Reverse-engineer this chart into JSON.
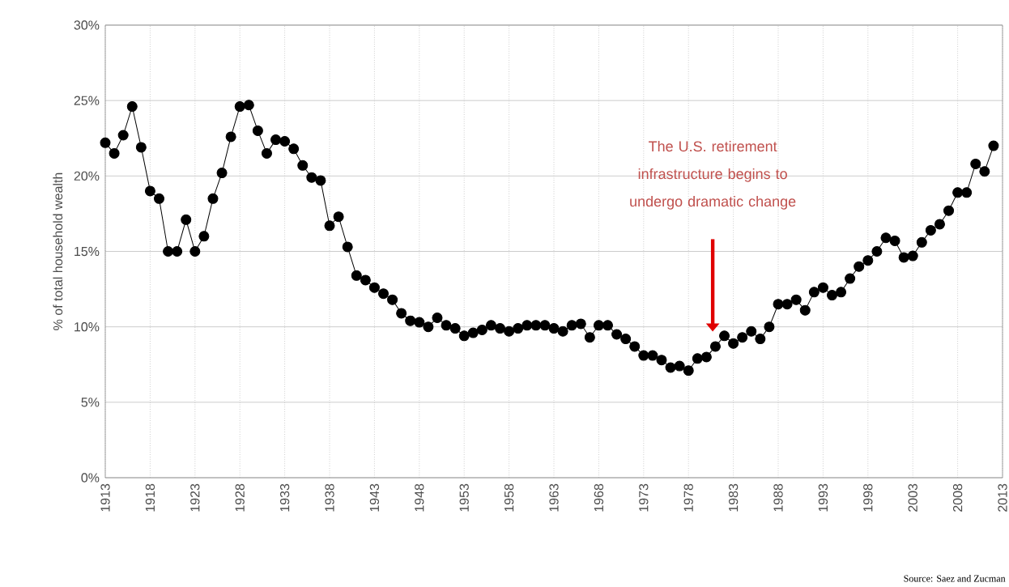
{
  "chart_data": {
    "type": "line",
    "ylabel": "% of total household wealth",
    "x": [
      1913,
      1914,
      1915,
      1916,
      1917,
      1918,
      1919,
      1920,
      1921,
      1922,
      1923,
      1924,
      1925,
      1926,
      1927,
      1928,
      1929,
      1930,
      1931,
      1932,
      1933,
      1934,
      1935,
      1936,
      1937,
      1938,
      1939,
      1940,
      1941,
      1942,
      1943,
      1944,
      1945,
      1946,
      1947,
      1948,
      1949,
      1950,
      1951,
      1952,
      1953,
      1954,
      1955,
      1956,
      1957,
      1958,
      1959,
      1960,
      1961,
      1962,
      1963,
      1964,
      1965,
      1966,
      1967,
      1968,
      1969,
      1970,
      1971,
      1972,
      1973,
      1974,
      1975,
      1976,
      1977,
      1978,
      1979,
      1980,
      1981,
      1982,
      1983,
      1984,
      1985,
      1986,
      1987,
      1988,
      1989,
      1990,
      1991,
      1992,
      1993,
      1994,
      1995,
      1996,
      1997,
      1998,
      1999,
      2000,
      2001,
      2002,
      2003,
      2004,
      2005,
      2006,
      2007,
      2008,
      2009,
      2010,
      2011,
      2012
    ],
    "values": [
      22.2,
      21.5,
      22.7,
      24.6,
      21.9,
      19.0,
      18.5,
      15.0,
      15.0,
      17.1,
      15.0,
      16.0,
      18.5,
      20.2,
      22.6,
      24.6,
      24.7,
      23.0,
      21.5,
      22.4,
      22.3,
      21.8,
      20.7,
      19.9,
      19.7,
      16.7,
      17.3,
      15.3,
      13.4,
      13.1,
      12.6,
      12.2,
      11.8,
      10.9,
      10.4,
      10.3,
      10.0,
      10.6,
      10.1,
      9.9,
      9.4,
      9.6,
      9.8,
      10.1,
      9.9,
      9.7,
      9.9,
      10.1,
      10.1,
      10.1,
      9.9,
      9.7,
      10.1,
      10.2,
      9.3,
      10.1,
      10.1,
      9.5,
      9.2,
      8.7,
      8.1,
      8.1,
      7.8,
      7.3,
      7.4,
      7.1,
      7.9,
      8.0,
      8.7,
      9.4,
      8.9,
      9.3,
      9.7,
      9.2,
      10.0,
      11.5,
      11.5,
      11.8,
      11.1,
      12.3,
      12.6,
      12.1,
      12.3,
      13.2,
      14.0,
      14.4,
      15.0,
      15.9,
      15.7,
      14.6,
      14.7,
      15.6,
      16.4,
      16.8,
      17.7,
      18.9,
      18.9,
      20.8,
      20.3,
      22.0
    ],
    "color": "#000000",
    "marker": "circle",
    "line_style": "solid",
    "grid": true,
    "xlim": [
      1913,
      2013
    ],
    "xticks": [
      1913,
      1918,
      1923,
      1928,
      1933,
      1938,
      1943,
      1948,
      1953,
      1958,
      1963,
      1968,
      1973,
      1978,
      1983,
      1988,
      1993,
      1998,
      2003,
      2008,
      2013
    ],
    "ylim": [
      0,
      30
    ],
    "yticks": [
      {
        "value": 0,
        "label": "0%"
      },
      {
        "value": 5,
        "label": "5%"
      },
      {
        "value": 10,
        "label": "10%"
      },
      {
        "value": 15,
        "label": "15%"
      },
      {
        "value": 20,
        "label": "20%"
      },
      {
        "value": 25,
        "label": "25%"
      },
      {
        "value": 30,
        "label": "30%"
      }
    ],
    "annotations": [
      "The U.S. retirement infrastructure begins to undergo dramatic change",
      "Source: Saez and Zucman"
    ]
  }
}
